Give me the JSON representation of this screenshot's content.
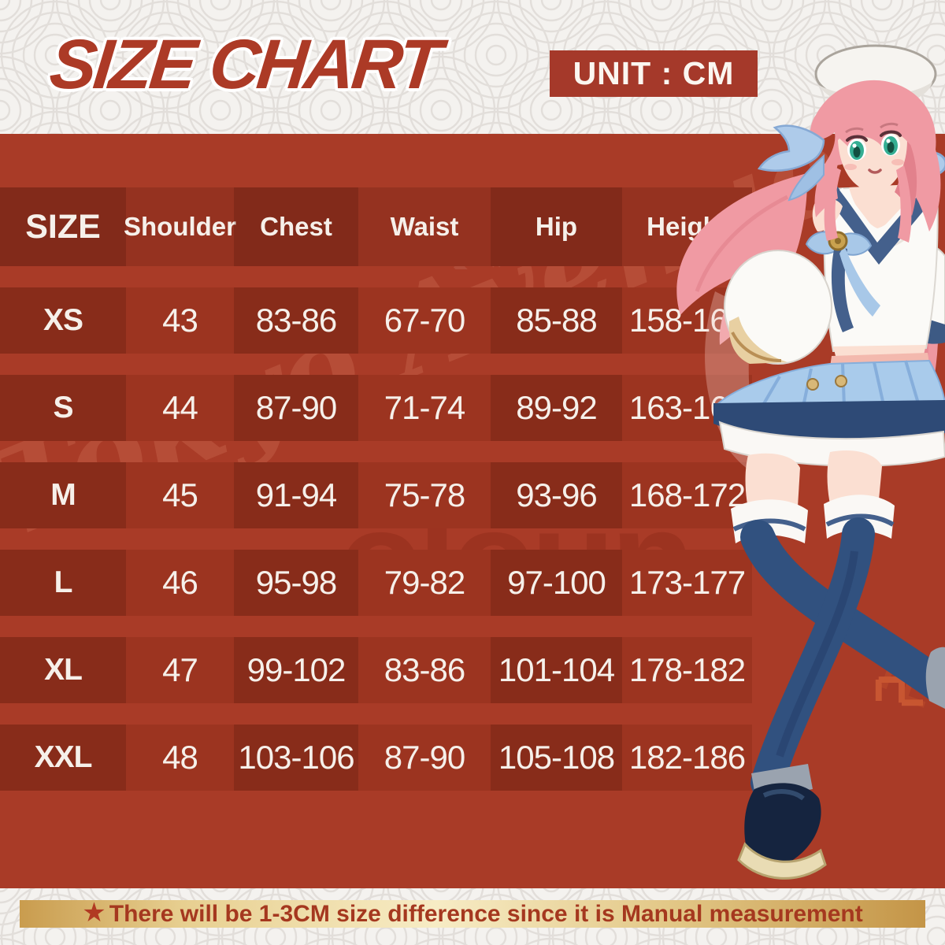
{
  "header": {
    "title": "SIZE CHART",
    "unit_label": "UNIT : CM"
  },
  "table": {
    "columns": [
      "SIZE",
      "Shoulder",
      "Chest",
      "Waist",
      "Hip",
      "Height"
    ],
    "row_keys": [
      "size",
      "shoulder",
      "chest",
      "waist",
      "hip",
      "height"
    ],
    "rows": [
      {
        "size": "XS",
        "shoulder": "43",
        "chest": "83-86",
        "waist": "67-70",
        "hip": "85-88",
        "height": "158-162"
      },
      {
        "size": "S",
        "shoulder": "44",
        "chest": "87-90",
        "waist": "71-74",
        "hip": "89-92",
        "height": "163-167"
      },
      {
        "size": "M",
        "shoulder": "45",
        "chest": "91-94",
        "waist": "75-78",
        "hip": "93-96",
        "height": "168-172"
      },
      {
        "size": "L",
        "shoulder": "46",
        "chest": "95-98",
        "waist": "79-82",
        "hip": "97-100",
        "height": "173-177"
      },
      {
        "size": "XL",
        "shoulder": "47",
        "chest": "99-102",
        "waist": "83-86",
        "hip": "101-104",
        "height": "178-182"
      },
      {
        "size": "XXL",
        "shoulder": "48",
        "chest": "103-106",
        "waist": "87-90",
        "hip": "105-108",
        "height": "182-186"
      }
    ]
  },
  "footer": {
    "star_icon": "★",
    "note": "There will be 1-3CM size difference since it is Manual measurement"
  },
  "watermarks": {
    "shop_text": "コスプレ専門店",
    "brand_text": "oloun",
    "script_text": "Tokyo Avenue"
  },
  "colors": {
    "panel_red": "#A93B27",
    "row_red": "#9C3420",
    "dark_cell_red": "#8B2E1C",
    "title_red": "#AC3A26",
    "gold_bar": "#E7CF90",
    "note_text_red": "#A5381F",
    "text_white": "#F6F0EA"
  }
}
